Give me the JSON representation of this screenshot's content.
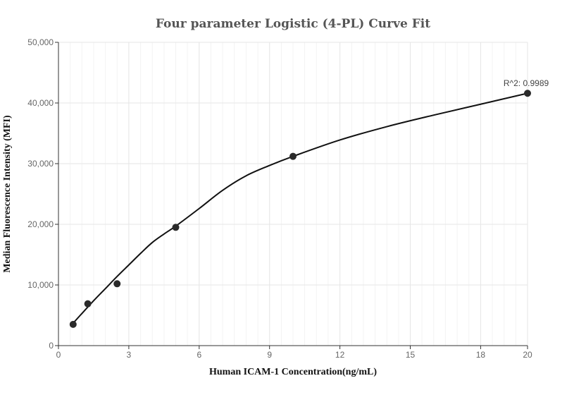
{
  "chart_data": {
    "type": "scatter",
    "title": "Four parameter Logistic (4-PL) Curve Fit",
    "xlabel": "Human ICAM-1 Concentration(ng/mL)",
    "ylabel": "Median Fluorescence Intensity (MFI)",
    "xlim": [
      0,
      20
    ],
    "ylim": [
      0,
      50000
    ],
    "x_ticks": [
      0,
      3,
      6,
      9,
      12,
      15,
      18,
      20
    ],
    "x_tick_labels": [
      "0",
      "3",
      "6",
      "9",
      "12",
      "15",
      "18",
      "20"
    ],
    "y_ticks": [
      0,
      10000,
      20000,
      30000,
      40000,
      50000
    ],
    "y_tick_labels": [
      "0",
      "10,000",
      "20,000",
      "30,000",
      "40,000",
      "50,000"
    ],
    "grid": true,
    "legend": "none",
    "annotation": "R^2: 0.9989",
    "series": [
      {
        "points": [
          {
            "x": 0.625,
            "y": 3500
          },
          {
            "x": 1.25,
            "y": 6900
          },
          {
            "x": 2.5,
            "y": 10200
          },
          {
            "x": 5,
            "y": 19500
          },
          {
            "x": 10,
            "y": 31200
          },
          {
            "x": 20,
            "y": 41600
          }
        ]
      }
    ],
    "fit_curve": {
      "type": "4-PL",
      "x": [
        0.625,
        1,
        1.5,
        2,
        2.5,
        3,
        3.5,
        4,
        4.5,
        5,
        6,
        7,
        8,
        9,
        10,
        12,
        14,
        16,
        18,
        20
      ],
      "y": [
        3700,
        5300,
        7400,
        9400,
        11400,
        13300,
        15200,
        17000,
        18400,
        19700,
        22600,
        25600,
        28000,
        29700,
        31200,
        33900,
        36100,
        38000,
        39800,
        41600
      ]
    },
    "colors": {
      "points": "#2a2a2a",
      "curve": "#111111",
      "title": "#555555"
    }
  }
}
